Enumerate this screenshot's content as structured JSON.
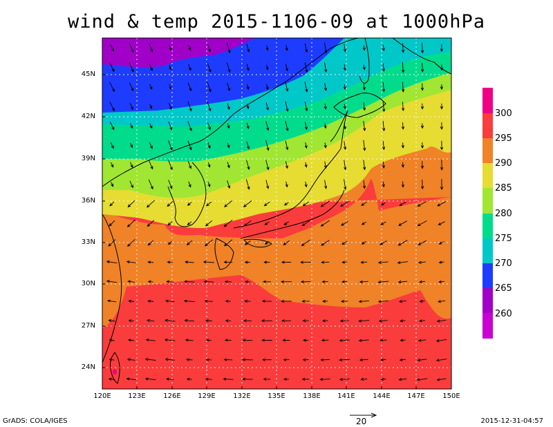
{
  "title": "wind & temp 2015-1106-09 at 1000hPa",
  "lat_labels": [
    "45N",
    "42N",
    "39N",
    "36N",
    "33N",
    "30N",
    "27N",
    "24N"
  ],
  "lon_labels": [
    "120E",
    "123E",
    "126E",
    "129E",
    "132E",
    "135E",
    "138E",
    "141E",
    "144E",
    "147E",
    "150E"
  ],
  "colorbar": {
    "labels": [
      "300",
      "295",
      "290",
      "285",
      "280",
      "275",
      "270",
      "265",
      "260"
    ],
    "colors": [
      "#f00082",
      "#fa3c3c",
      "#f08228",
      "#e6dc32",
      "#a0e632",
      "#00dc8c",
      "#00c8c8",
      "#1e3cff",
      "#a000c8"
    ]
  },
  "reference_vector": {
    "label": "20"
  },
  "footer": {
    "credit": "GrADS: COLA/IGES",
    "timestamp": "2015-12-31-04:57"
  },
  "chart_data": {
    "type": "map",
    "variable": "wind & temp",
    "level": "1000hPa",
    "lon_range": [
      120,
      150
    ],
    "lat_range": [
      22.5,
      48.5
    ],
    "temperature_bands": [
      {
        "range": [
          255,
          265
        ],
        "color": "#a000c8"
      },
      {
        "range": [
          265,
          270
        ],
        "color": "#1e3cff"
      },
      {
        "range": [
          270,
          275
        ],
        "color": "#00c8c8"
      },
      {
        "range": [
          275,
          280
        ],
        "color": "#00dc8c"
      },
      {
        "range": [
          280,
          285
        ],
        "color": "#a0e632"
      },
      {
        "range": [
          285,
          290
        ],
        "color": "#e6dc32"
      },
      {
        "range": [
          290,
          295
        ],
        "color": "#f08228"
      },
      {
        "range": [
          295,
          300
        ],
        "color": "#fa3c3c"
      },
      {
        "range": [
          300,
          305
        ],
        "color": "#f00082"
      }
    ],
    "reference_vector_magnitude": 20,
    "grid": true
  }
}
